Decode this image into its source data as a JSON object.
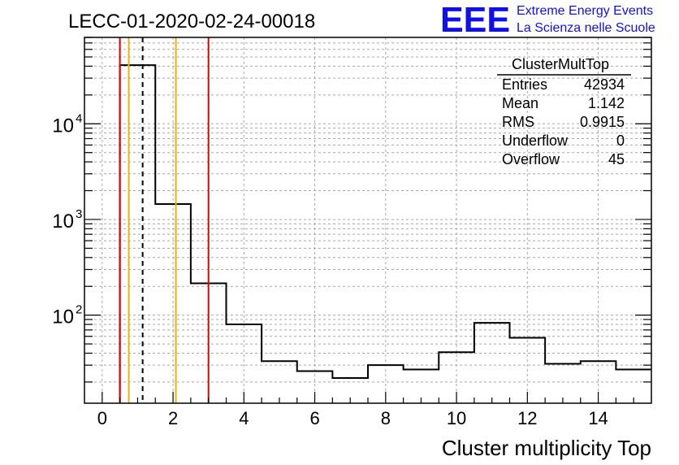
{
  "header": {
    "run_title": "LECC-01-2020-02-24-00018",
    "logo_text": "EEE",
    "logo_line1": "Extreme Energy Events",
    "logo_line2": "La Scienza nelle Scuole",
    "logo_color": "#1010ee"
  },
  "stats": {
    "title": "ClusterMultTop",
    "rows": [
      {
        "label": "Entries",
        "value": "42934"
      },
      {
        "label": "Mean",
        "value": "1.142"
      },
      {
        "label": "RMS",
        "value": "0.9915"
      },
      {
        "label": "Underflow",
        "value": "0"
      },
      {
        "label": "Overflow",
        "value": "45"
      }
    ]
  },
  "chart_data": {
    "type": "bar",
    "subtype": "histogram-step",
    "xlabel": "Cluster multiplicity Top",
    "ylabel": "",
    "xlim": [
      -0.5,
      15.5
    ],
    "ylim": [
      12,
      80000
    ],
    "yscale": "log",
    "grid": true,
    "bin_edges": [
      0.5,
      1.5,
      2.5,
      3.5,
      4.5,
      5.5,
      6.5,
      7.5,
      8.5,
      9.5,
      10.5,
      11.5,
      12.5,
      13.5,
      14.5,
      15.5
    ],
    "values": [
      41000,
      1450,
      215,
      80,
      33,
      26,
      22,
      30,
      27,
      41,
      83,
      58,
      31,
      33,
      27
    ],
    "x_ticks": [
      "0",
      "2",
      "4",
      "6",
      "8",
      "10",
      "12",
      "14"
    ],
    "x_tick_values": [
      0,
      2,
      4,
      6,
      8,
      10,
      12,
      14
    ],
    "y_ticks": [
      {
        "base": "10",
        "exp": "2",
        "value": 100
      },
      {
        "base": "10",
        "exp": "3",
        "value": 1000
      },
      {
        "base": "10",
        "exp": "4",
        "value": 10000
      }
    ],
    "markers": [
      {
        "x": 0.5,
        "color": "#e00000",
        "style": "solid"
      },
      {
        "x": 0.75,
        "color": "#f0b000",
        "style": "solid"
      },
      {
        "x": 1.142,
        "color": "#000000",
        "style": "dashed"
      },
      {
        "x": 2.08,
        "color": "#f0b000",
        "style": "solid"
      },
      {
        "x": 3.0,
        "color": "#e00000",
        "style": "solid"
      }
    ],
    "line_color": "#000000"
  }
}
